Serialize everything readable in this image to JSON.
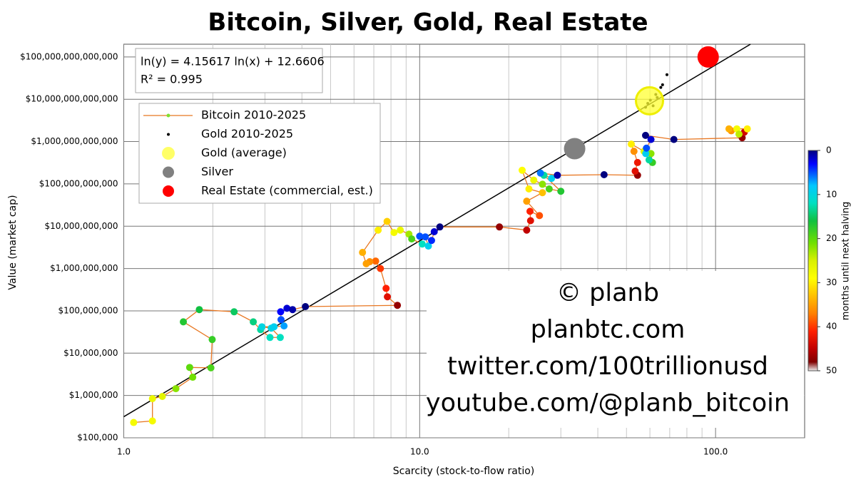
{
  "chart_data": {
    "type": "scatter",
    "title": "Bitcoin, Silver, Gold, Real Estate",
    "x_label": "Scarcity (stock-to-flow ratio)",
    "y_label": "Value (market cap)",
    "xscale": "log",
    "yscale": "log",
    "grid": true,
    "xlim": [
      1,
      200
    ],
    "xticks": [
      {
        "value": 1,
        "label": "1.0"
      },
      {
        "value": 10,
        "label": "10.0"
      },
      {
        "value": 100,
        "label": "100.0"
      }
    ],
    "ylim": [
      100000,
      200000000000000
    ],
    "yticks": [
      {
        "value": 100000,
        "label": "$100,000"
      },
      {
        "value": 1000000,
        "label": "$1,000,000"
      },
      {
        "value": 10000000,
        "label": "$10,000,000"
      },
      {
        "value": 100000000,
        "label": "$100,000,000"
      },
      {
        "value": 1000000000,
        "label": "$1,000,000,000"
      },
      {
        "value": 10000000000,
        "label": "$10,000,000,000"
      },
      {
        "value": 100000000000,
        "label": "$100,000,000,000"
      },
      {
        "value": 1000000000000,
        "label": "$1,000,000,000,000"
      },
      {
        "value": 10000000000000,
        "label": "$10,000,000,000,000"
      },
      {
        "value": 100000000000000,
        "label": "$100,000,000,000,000"
      }
    ],
    "fit": {
      "label": "ln(y) = 4.15617 ln(x) + 12.6606",
      "slope": 4.15617,
      "intercept": 12.6606,
      "r2_label": "R² = 0.995"
    },
    "legend": "upper left",
    "colorbar": {
      "label": "months until next halving",
      "lim": [
        0,
        50
      ],
      "ticks": [
        0,
        10,
        20,
        30,
        40,
        50
      ]
    },
    "series": [
      {
        "name": "Bitcoin 2010-2025",
        "color": "#e87722",
        "marker_color": "#7fe030",
        "x": [
          1.08,
          1.25,
          1.25,
          1.35,
          1.5,
          1.71,
          1.67,
          1.97,
          1.99,
          1.59,
          1.8,
          2.36,
          2.74,
          2.9,
          3.12,
          3.38,
          3.15,
          2.93,
          3.22,
          3.48,
          3.4,
          3.39,
          3.56,
          3.72,
          4.11,
          8.41,
          7.78,
          7.7,
          7.37,
          7.1,
          6.78,
          6.6,
          6.41,
          7.24,
          7.76,
          8.19,
          8.6,
          9.2,
          9.4,
          10.2,
          10.7,
          10.45,
          10.0,
          10.97,
          11.2,
          11.7,
          18.6,
          23.0,
          23.7,
          23.6,
          25.4,
          23.0,
          26.0,
          23.4,
          22.2,
          24.3,
          26.0,
          27.4,
          30.0,
          26.3,
          27.9,
          25.6,
          29.2,
          42.0,
          54.5,
          53.5,
          54.5,
          53.0,
          51.9,
          57.3,
          60.5,
          61.2,
          59.6,
          58.1,
          58.4,
          60.5,
          58.0,
          72.3,
          123,
          125,
          113,
          111,
          128,
          118,
          120
        ],
        "values": [
          230000,
          250000,
          840000,
          950000,
          1450000,
          2700000,
          4600000,
          4500000,
          21000000,
          55000000,
          107000000,
          95000000,
          55000000,
          36000000,
          23500000,
          23500000,
          39000000,
          42000000,
          42000000,
          44000000,
          62000000,
          95000000,
          115000000,
          107000000,
          126000000,
          135000000,
          215000000,
          340000000,
          1000000000,
          1500000000,
          1450000000,
          1300000000,
          2400000000,
          8100000000,
          13000000000,
          7100000000,
          8100000000,
          6500000000,
          5000000000,
          3800000000,
          3400000000,
          5600000000,
          5800000000,
          4600000000,
          7400000000,
          9600000000,
          9600000000,
          8100000000,
          13500000000,
          22500000000,
          17800000000,
          39000000000,
          62000000000,
          76000000000,
          210000000000,
          123000000000,
          98000000000,
          76000000000,
          67000000000,
          160000000000,
          135000000000,
          180000000000,
          160000000000,
          165000000000,
          160000000000,
          200000000000,
          320000000000,
          590000000000,
          870000000000,
          590000000000,
          520000000000,
          320000000000,
          370000000000,
          520000000000,
          700000000000,
          1120000000000,
          1400000000000,
          1120000000000,
          1230000000000,
          1660000000000,
          1800000000000,
          2000000000000,
          2000000000000,
          2000000000000,
          1500000000000
        ],
        "months": [
          28,
          28,
          27,
          26,
          22,
          21,
          20,
          19,
          18,
          17,
          16,
          15,
          14,
          13,
          12,
          12,
          10,
          10,
          9,
          7,
          5,
          3,
          2,
          1,
          0,
          47,
          43,
          41,
          40,
          38,
          36,
          35,
          34,
          30,
          32,
          28,
          27,
          23,
          19,
          12,
          9,
          5,
          5,
          4,
          2,
          0,
          47,
          45,
          43,
          41,
          39,
          35,
          33,
          30,
          29,
          27,
          22,
          19,
          17,
          13,
          9,
          6,
          1,
          0,
          47,
          43,
          42,
          36,
          30,
          26,
          22,
          18,
          13,
          9,
          5,
          2,
          0,
          0,
          47,
          44,
          36,
          34,
          30,
          28,
          24
        ]
      },
      {
        "name": "Gold 2010-2025",
        "color": "#000000",
        "x": [
          58.0,
          60.2,
          62.8,
          65.3,
          66.2,
          68.5,
          59.0,
          61.5,
          63.5
        ],
        "values": [
          6500000000000,
          9500000000000,
          13000000000000,
          19000000000000,
          22000000000000,
          38000000000000,
          8000000000000,
          7000000000000,
          11000000000000
        ]
      },
      {
        "name": "Gold (average)",
        "color": "#ffff33",
        "x": [
          59.8
        ],
        "values": [
          9200000000000
        ]
      },
      {
        "name": "Silver",
        "color": "#808080",
        "x": [
          33.4
        ],
        "values": [
          680000000000
        ]
      },
      {
        "name": "Real Estate (commercial, est.)",
        "color": "#ff0000",
        "x": [
          94.4
        ],
        "values": [
          100000000000000
        ]
      }
    ],
    "annotations": [
      "© planb",
      "planbtc.com",
      "twitter.com/100trillionusd",
      "youtube.com/@planb_bitcoin"
    ]
  }
}
